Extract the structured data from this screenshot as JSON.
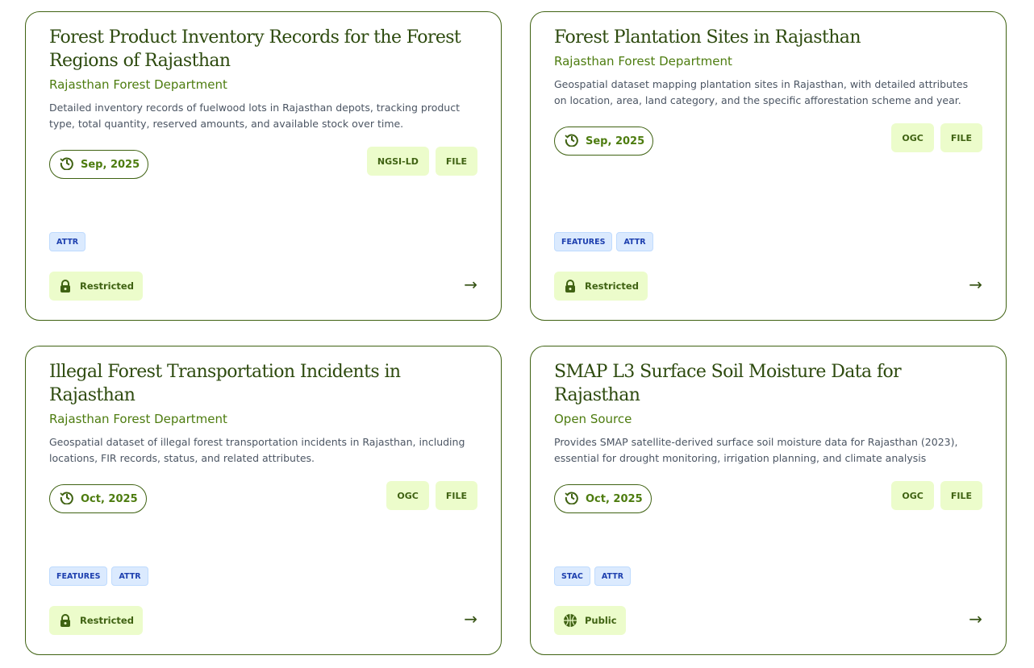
{
  "cards": [
    {
      "title": "Forest Product Inventory Records for the Forest Regions of Rajasthan",
      "org": "Rajasthan Forest Department",
      "desc": "Detailed inventory records of fuelwood lots in Rajasthan depots, tracking product type, total quantity, reserved amounts, and available stock over time.",
      "date": "Sep, 2025",
      "formats": [
        "NGSI-LD",
        "FILE"
      ],
      "tags": [
        "ATTR"
      ],
      "access": "Restricted",
      "access_icon": "lock-icon"
    },
    {
      "title": "Forest Plantation Sites in Rajasthan",
      "org": "Rajasthan Forest Department",
      "desc": "Geospatial dataset mapping plantation sites in Rajasthan, with detailed attributes on location, area, land category, and the specific afforestation scheme and year.",
      "date": "Sep, 2025",
      "formats": [
        "OGC",
        "FILE"
      ],
      "tags": [
        "FEATURES",
        "ATTR"
      ],
      "access": "Restricted",
      "access_icon": "lock-icon"
    },
    {
      "title": "Illegal Forest Transportation Incidents in Rajasthan",
      "org": "Rajasthan Forest Department",
      "desc": "Geospatial dataset of illegal forest transportation incidents in Rajasthan, including locations, FIR records, status, and related attributes.",
      "date": "Oct, 2025",
      "formats": [
        "OGC",
        "FILE"
      ],
      "tags": [
        "FEATURES",
        "ATTR"
      ],
      "access": "Restricted",
      "access_icon": "lock-icon"
    },
    {
      "title": "SMAP L3 Surface Soil Moisture Data for Rajasthan",
      "org": "Open Source",
      "desc": "Provides SMAP satellite-derived surface soil moisture data for Rajasthan (2023), essential for drought monitoring, irrigation planning, and climate analysis",
      "date": "Oct, 2025",
      "formats": [
        "OGC",
        "FILE"
      ],
      "tags": [
        "STAC",
        "ATTR"
      ],
      "access": "Public",
      "access_icon": "globe-icon"
    }
  ],
  "arrow": "→"
}
